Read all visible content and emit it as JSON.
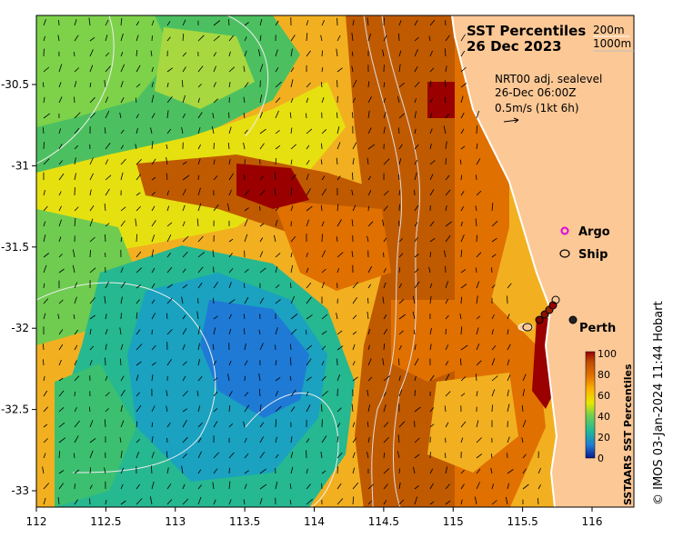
{
  "title": {
    "line1": "SST Percentiles",
    "line2": "26 Dec 2023"
  },
  "isobaths": {
    "label_200": "200m",
    "label_1000": "1000m"
  },
  "currents": {
    "source": "NRT00 adj. sealevel",
    "time": "26-Dec 06:00Z",
    "scale": "0.5m/s (1kt 6h)"
  },
  "legend": {
    "argo": "Argo",
    "ship": "Ship",
    "argo_color": "#e000e0",
    "ship_color": "#000000"
  },
  "place": {
    "perth": "Perth"
  },
  "colorbar": {
    "title": "SSTAARS SST Percentiles",
    "ticks": [
      "100",
      "80",
      "60",
      "40",
      "20",
      "0"
    ],
    "colors": [
      "#0a1a8c",
      "#1f7ad6",
      "#1fb89a",
      "#6fd050",
      "#e8e800",
      "#ffb000",
      "#e07000",
      "#c05000",
      "#9a0000"
    ]
  },
  "credit": "© IMOS 03-Jan-2024 11:44 Hobart",
  "axes": {
    "x_ticks": [
      "112",
      "112.5",
      "113",
      "113.5",
      "114",
      "114.5",
      "115",
      "115.5",
      "116"
    ],
    "y_ticks": [
      "-30.5",
      "-31",
      "-31.5",
      "-32",
      "-32.5",
      "-33"
    ]
  },
  "colors": {
    "land": "#fcc896",
    "coast": "#ffffff"
  }
}
